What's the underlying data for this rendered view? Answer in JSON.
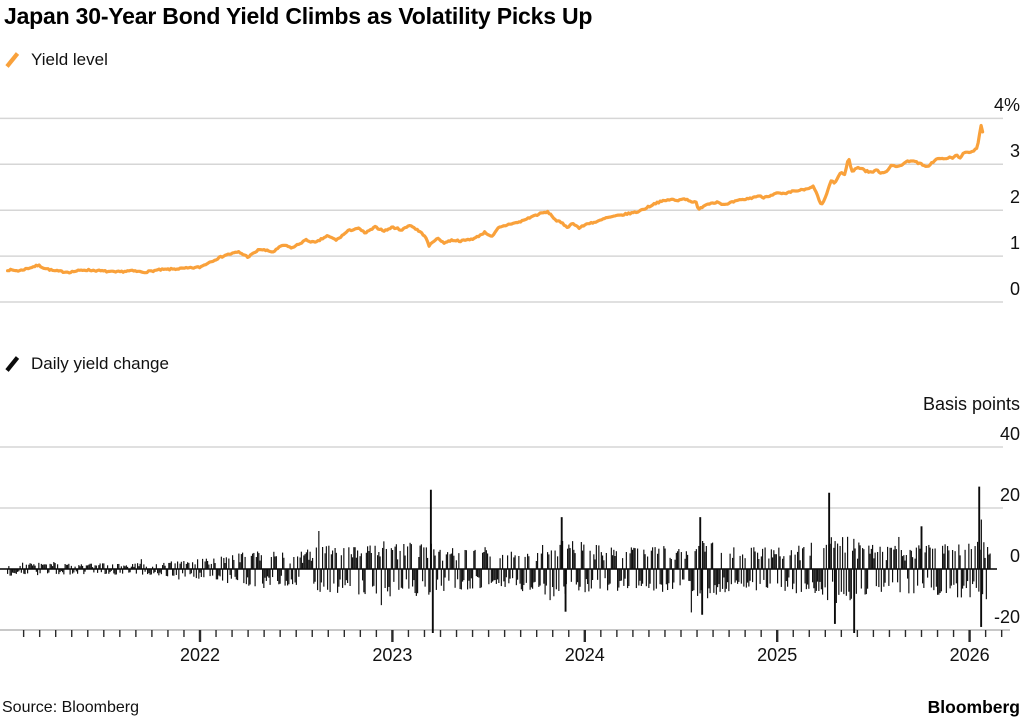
{
  "title": "Japan 30-Year Bond Yield Climbs as Volatility Picks Up",
  "footer": {
    "source": "Source: Bloomberg",
    "brand": "Bloomberg"
  },
  "chart_data": [
    {
      "type": "line",
      "name": "yield-level",
      "legend": "Yield level",
      "color": "#F9A13B",
      "unit": "%",
      "ylim": [
        0,
        4
      ],
      "yticks": [
        {
          "value": 4,
          "label": "4%"
        },
        {
          "value": 3,
          "label": "3"
        },
        {
          "value": 2,
          "label": "2"
        },
        {
          "value": 1,
          "label": "1"
        },
        {
          "value": 0,
          "label": "0"
        }
      ],
      "xticks_years": [
        2022,
        2023,
        2024,
        2025,
        2026
      ],
      "x_range": [
        2021.0,
        2026.07
      ],
      "grid": true,
      "legend_position": "top-left",
      "points": [
        [
          2021.0,
          0.7
        ],
        [
          2021.06,
          0.68
        ],
        [
          2021.16,
          0.8
        ],
        [
          2021.19,
          0.74
        ],
        [
          2021.24,
          0.68
        ],
        [
          2021.32,
          0.65
        ],
        [
          2021.4,
          0.7
        ],
        [
          2021.48,
          0.68
        ],
        [
          2021.56,
          0.65
        ],
        [
          2021.64,
          0.68
        ],
        [
          2021.71,
          0.65
        ],
        [
          2021.79,
          0.7
        ],
        [
          2021.87,
          0.72
        ],
        [
          2021.95,
          0.74
        ],
        [
          2022.0,
          0.76
        ],
        [
          2022.06,
          0.89
        ],
        [
          2022.13,
          1.02
        ],
        [
          2022.2,
          1.09
        ],
        [
          2022.25,
          0.98
        ],
        [
          2022.31,
          1.15
        ],
        [
          2022.38,
          1.09
        ],
        [
          2022.43,
          1.24
        ],
        [
          2022.48,
          1.18
        ],
        [
          2022.55,
          1.35
        ],
        [
          2022.6,
          1.29
        ],
        [
          2022.66,
          1.44
        ],
        [
          2022.71,
          1.35
        ],
        [
          2022.77,
          1.55
        ],
        [
          2022.82,
          1.61
        ],
        [
          2022.86,
          1.5
        ],
        [
          2022.91,
          1.63
        ],
        [
          2022.96,
          1.55
        ],
        [
          2023.0,
          1.63
        ],
        [
          2023.05,
          1.57
        ],
        [
          2023.09,
          1.68
        ],
        [
          2023.13,
          1.57
        ],
        [
          2023.17,
          1.44
        ],
        [
          2023.19,
          1.22
        ],
        [
          2023.23,
          1.39
        ],
        [
          2023.27,
          1.29
        ],
        [
          2023.31,
          1.35
        ],
        [
          2023.36,
          1.33
        ],
        [
          2023.43,
          1.39
        ],
        [
          2023.48,
          1.52
        ],
        [
          2023.52,
          1.42
        ],
        [
          2023.55,
          1.61
        ],
        [
          2023.61,
          1.7
        ],
        [
          2023.66,
          1.74
        ],
        [
          2023.73,
          1.87
        ],
        [
          2023.78,
          1.94
        ],
        [
          2023.81,
          1.96
        ],
        [
          2023.85,
          1.78
        ],
        [
          2023.88,
          1.72
        ],
        [
          2023.91,
          1.63
        ],
        [
          2023.94,
          1.72
        ],
        [
          2023.97,
          1.61
        ],
        [
          2024.02,
          1.72
        ],
        [
          2024.06,
          1.74
        ],
        [
          2024.11,
          1.83
        ],
        [
          2024.16,
          1.87
        ],
        [
          2024.22,
          1.92
        ],
        [
          2024.27,
          1.96
        ],
        [
          2024.32,
          2.05
        ],
        [
          2024.37,
          2.16
        ],
        [
          2024.41,
          2.2
        ],
        [
          2024.45,
          2.24
        ],
        [
          2024.48,
          2.2
        ],
        [
          2024.51,
          2.26
        ],
        [
          2024.55,
          2.2
        ],
        [
          2024.58,
          2.16
        ],
        [
          2024.59,
          2.0
        ],
        [
          2024.62,
          2.11
        ],
        [
          2024.66,
          2.16
        ],
        [
          2024.69,
          2.18
        ],
        [
          2024.73,
          2.11
        ],
        [
          2024.77,
          2.18
        ],
        [
          2024.81,
          2.22
        ],
        [
          2024.86,
          2.26
        ],
        [
          2024.9,
          2.31
        ],
        [
          2024.93,
          2.28
        ],
        [
          2025.0,
          2.37
        ],
        [
          2025.04,
          2.35
        ],
        [
          2025.08,
          2.41
        ],
        [
          2025.13,
          2.44
        ],
        [
          2025.16,
          2.46
        ],
        [
          2025.19,
          2.52
        ],
        [
          2025.21,
          2.3
        ],
        [
          2025.23,
          2.11
        ],
        [
          2025.24,
          2.17
        ],
        [
          2025.27,
          2.5
        ],
        [
          2025.28,
          2.65
        ],
        [
          2025.3,
          2.59
        ],
        [
          2025.33,
          2.83
        ],
        [
          2025.35,
          2.76
        ],
        [
          2025.37,
          3.15
        ],
        [
          2025.39,
          2.83
        ],
        [
          2025.41,
          2.92
        ],
        [
          2025.44,
          2.92
        ],
        [
          2025.46,
          2.85
        ],
        [
          2025.49,
          2.83
        ],
        [
          2025.52,
          2.87
        ],
        [
          2025.54,
          2.81
        ],
        [
          2025.57,
          2.85
        ],
        [
          2025.59,
          2.98
        ],
        [
          2025.62,
          2.94
        ],
        [
          2025.65,
          3.0
        ],
        [
          2025.67,
          3.05
        ],
        [
          2025.7,
          3.09
        ],
        [
          2025.72,
          3.05
        ],
        [
          2025.75,
          3.0
        ],
        [
          2025.77,
          2.94
        ],
        [
          2025.79,
          2.98
        ],
        [
          2025.82,
          3.09
        ],
        [
          2025.84,
          3.13
        ],
        [
          2025.87,
          3.11
        ],
        [
          2025.89,
          3.15
        ],
        [
          2025.91,
          3.13
        ],
        [
          2025.93,
          3.2
        ],
        [
          2025.95,
          3.15
        ],
        [
          2025.97,
          3.24
        ],
        [
          2026.0,
          3.26
        ],
        [
          2026.02,
          3.3
        ],
        [
          2026.04,
          3.37
        ],
        [
          2026.05,
          3.63
        ],
        [
          2026.06,
          3.85
        ],
        [
          2026.07,
          3.67
        ]
      ]
    },
    {
      "type": "bar",
      "name": "daily-yield-change",
      "legend": "Daily yield change",
      "color": "#0B0B0B",
      "unit_label": "Basis points",
      "ylim": [
        -20,
        40
      ],
      "yticks": [
        {
          "value": 40,
          "label": "40"
        },
        {
          "value": 20,
          "label": "20"
        },
        {
          "value": 0,
          "label": "0"
        },
        {
          "value": -20,
          "label": "-20"
        }
      ],
      "xticks_years": [
        2022,
        2023,
        2024,
        2025,
        2026
      ],
      "x_range": [
        2021.0,
        2026.06
      ],
      "zero_line": true,
      "volatility_envelope_bp": [
        [
          2021.0,
          2.2
        ],
        [
          2021.4,
          1.8
        ],
        [
          2021.75,
          2.0
        ],
        [
          2021.95,
          3.0
        ],
        [
          2022.1,
          4.5
        ],
        [
          2022.3,
          6.5
        ],
        [
          2022.45,
          5.5
        ],
        [
          2022.6,
          7.5
        ],
        [
          2022.8,
          8.5
        ],
        [
          2023.0,
          8.0
        ],
        [
          2023.15,
          9.0
        ],
        [
          2023.3,
          7.0
        ],
        [
          2023.5,
          6.5
        ],
        [
          2023.7,
          7.5
        ],
        [
          2023.9,
          10.0
        ],
        [
          2024.1,
          7.5
        ],
        [
          2024.3,
          7.0
        ],
        [
          2024.5,
          8.0
        ],
        [
          2024.62,
          10.0
        ],
        [
          2024.8,
          7.0
        ],
        [
          2025.0,
          7.5
        ],
        [
          2025.2,
          9.0
        ],
        [
          2025.33,
          12.0
        ],
        [
          2025.5,
          8.0
        ],
        [
          2025.7,
          8.0
        ],
        [
          2025.9,
          9.0
        ],
        [
          2026.02,
          10.0
        ]
      ],
      "notable_spikes_bp": [
        [
          2023.2,
          26
        ],
        [
          2023.21,
          -21
        ],
        [
          2023.88,
          17
        ],
        [
          2023.9,
          -14
        ],
        [
          2024.6,
          17
        ],
        [
          2024.61,
          -15
        ],
        [
          2025.27,
          25
        ],
        [
          2025.3,
          -18
        ],
        [
          2025.4,
          -21
        ],
        [
          2025.75,
          14
        ],
        [
          2026.05,
          27
        ],
        [
          2026.06,
          -19
        ]
      ]
    }
  ]
}
